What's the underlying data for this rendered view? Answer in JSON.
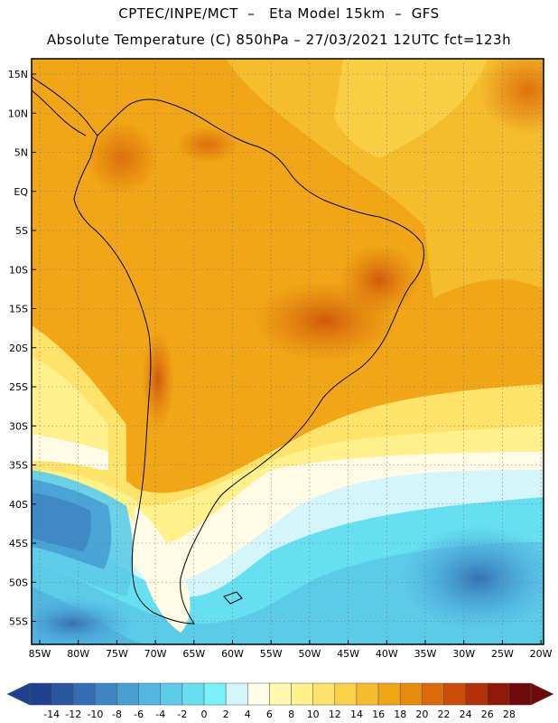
{
  "title_line1": "CPTEC/INPE/MCT  –   Eta Model 15km  –  GFS",
  "title_line2": "Absolute Temperature (C) 850hPa – 27/03/2021 12UTC fct=123h",
  "lat_labels": [
    "15N",
    "10N",
    "5N",
    "EQ",
    "5S",
    "10S",
    "15S",
    "20S",
    "25S",
    "30S",
    "35S",
    "40S",
    "45S",
    "50S",
    "55S"
  ],
  "lon_labels": [
    "85W",
    "80W",
    "75W",
    "70W",
    "65W",
    "60W",
    "55W",
    "50W",
    "45W",
    "40W",
    "35W",
    "30W",
    "25W",
    "20W"
  ],
  "colorbar": {
    "labels": [
      "-14",
      "-12",
      "-10",
      "-8",
      "-6",
      "-4",
      "-2",
      "0",
      "2",
      "4",
      "6",
      "8",
      "10",
      "12",
      "14",
      "16",
      "18",
      "20",
      "22",
      "24",
      "26",
      "28"
    ],
    "colors": [
      "#1f3f8f",
      "#2c55a0",
      "#346db3",
      "#3d86c4",
      "#479fd4",
      "#52b6e0",
      "#5ccbe8",
      "#66e0f0",
      "#7af0f8",
      "#d4f6fb",
      "#fffbe6",
      "#fff8b0",
      "#fef08a",
      "#fde36a",
      "#f9d24a",
      "#f5bd2e",
      "#f0a616",
      "#e88a0c",
      "#dc6a0a",
      "#cc4c08",
      "#b33008",
      "#8f1a0a",
      "#6e0a0e"
    ]
  }
}
